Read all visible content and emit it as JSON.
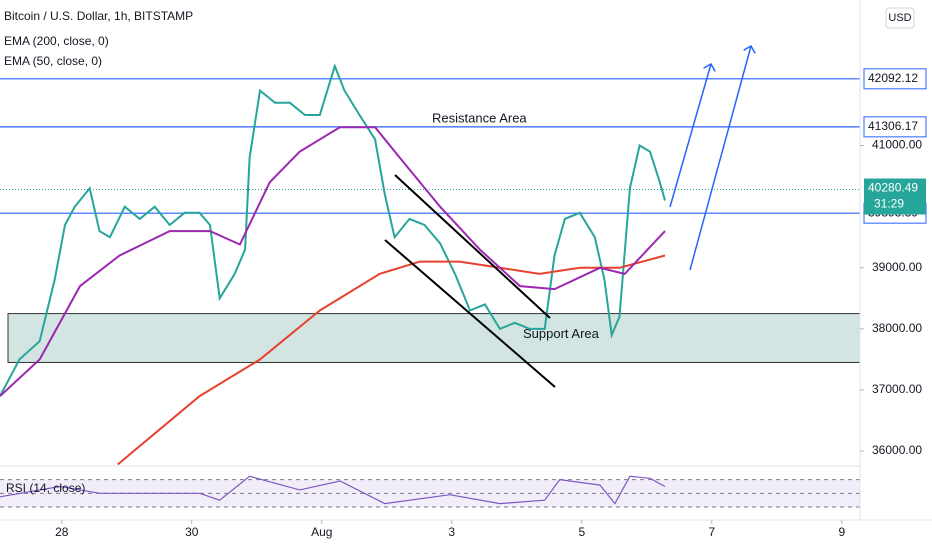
{
  "chart_data": [
    {
      "type": "line",
      "title": "Bitcoin / U.S. Dollar, 1h, BITSTAMP",
      "currency": "USD",
      "xlim": [
        -0.95,
        12.28
      ],
      "xticks": [
        {
          "value": 0,
          "label": "28"
        },
        {
          "value": 2,
          "label": "30"
        },
        {
          "value": 4,
          "label": "Aug"
        },
        {
          "value": 6,
          "label": "3"
        },
        {
          "value": 8,
          "label": "5"
        },
        {
          "value": 10,
          "label": "7"
        },
        {
          "value": 12,
          "label": "9"
        }
      ],
      "ylim": [
        35772,
        43382
      ],
      "yticks": [
        {
          "value": 36000,
          "label": "36000.00"
        },
        {
          "value": 37000,
          "label": "37000.00"
        },
        {
          "value": 38000,
          "label": "38000.00"
        },
        {
          "value": 39000,
          "label": "39000.00"
        },
        {
          "value": 41000,
          "label": "41000.00"
        }
      ],
      "series": [
        {
          "color": "#26a69a",
          "x": [
            -0.95,
            -0.65,
            -0.34,
            -0.11,
            0.05,
            0.2,
            0.43,
            0.58,
            0.74,
            0.97,
            1.2,
            1.43,
            1.66,
            1.89,
            2.12,
            2.28,
            2.43,
            2.66,
            2.82,
            2.89,
            3.05,
            3.28,
            3.51,
            3.74,
            3.97,
            4.2,
            4.35,
            4.58,
            4.82,
            4.97,
            5.12,
            5.35,
            5.58,
            5.82,
            6.05,
            6.28,
            6.51,
            6.74,
            6.97,
            7.2,
            7.43,
            7.58,
            7.74,
            7.97,
            8.2,
            8.35,
            8.46,
            8.58,
            8.74,
            8.89,
            9.05,
            9.2,
            9.28
          ],
          "values": [
            36900,
            37500,
            37800,
            38800,
            39700,
            40000,
            40300,
            39600,
            39500,
            40000,
            39800,
            40000,
            39700,
            39900,
            39900,
            39700,
            38500,
            38900,
            39300,
            40800,
            41900,
            41700,
            41700,
            41500,
            41500,
            42300,
            41900,
            41500,
            41100,
            40200,
            39500,
            39800,
            39700,
            39400,
            38900,
            38300,
            38400,
            38000,
            38100,
            38000,
            38000,
            39200,
            39800,
            39900,
            39500,
            38800,
            37900,
            38200,
            40300,
            41000,
            40900,
            40400,
            40100
          ]
        },
        {
          "name": "EMA (200, close, 0)",
          "color": "#e8412f",
          "x": [
            0.86,
            2.12,
            3.05,
            3.97,
            4.89,
            5.51,
            6.12,
            6.74,
            7.35,
            7.97,
            8.58,
            9.28
          ],
          "values": [
            35780,
            36900,
            37500,
            38300,
            38900,
            39100,
            39100,
            39000,
            38900,
            39000,
            39000,
            39200
          ]
        },
        {
          "name": "EMA (50, close, 0)",
          "color": "#9c27b0",
          "x": [
            -0.95,
            -0.34,
            0.28,
            0.89,
            1.66,
            2.28,
            2.74,
            3.2,
            3.66,
            4.28,
            4.82,
            5.2,
            5.82,
            6.43,
            7.05,
            7.58,
            8.28,
            8.66,
            9.28
          ],
          "values": [
            36900,
            37500,
            38700,
            39200,
            39600,
            39600,
            39380,
            40400,
            40900,
            41300,
            41300,
            40800,
            40000,
            39300,
            38700,
            38650,
            39000,
            38900,
            39600
          ]
        }
      ],
      "levels": [
        42092.12,
        41306.17,
        39893.39
      ],
      "level_color": "#2962ff",
      "last_price": 40280.49,
      "countdown": "31:29",
      "resistance_label": "Resistance Area",
      "support_zone": [
        37450,
        38250
      ],
      "support_label": "Support Area"
    },
    {
      "type": "line",
      "title": "RSI (14, close)",
      "ylim": [
        11,
        90
      ],
      "bands": [
        30,
        50,
        70
      ],
      "series": [
        {
          "color": "#7e57c2",
          "x": [
            -0.95,
            -0.03,
            0.58,
            2.12,
            2.43,
            2.89,
            3.66,
            4.28,
            4.97,
            5.97,
            6.74,
            7.43,
            7.66,
            8.28,
            8.51,
            8.74,
            9.05,
            9.28
          ],
          "values": [
            45,
            60,
            50,
            50,
            40,
            75,
            55,
            68,
            35,
            48,
            35,
            40,
            70,
            62,
            35,
            75,
            72,
            60
          ]
        }
      ]
    }
  ]
}
